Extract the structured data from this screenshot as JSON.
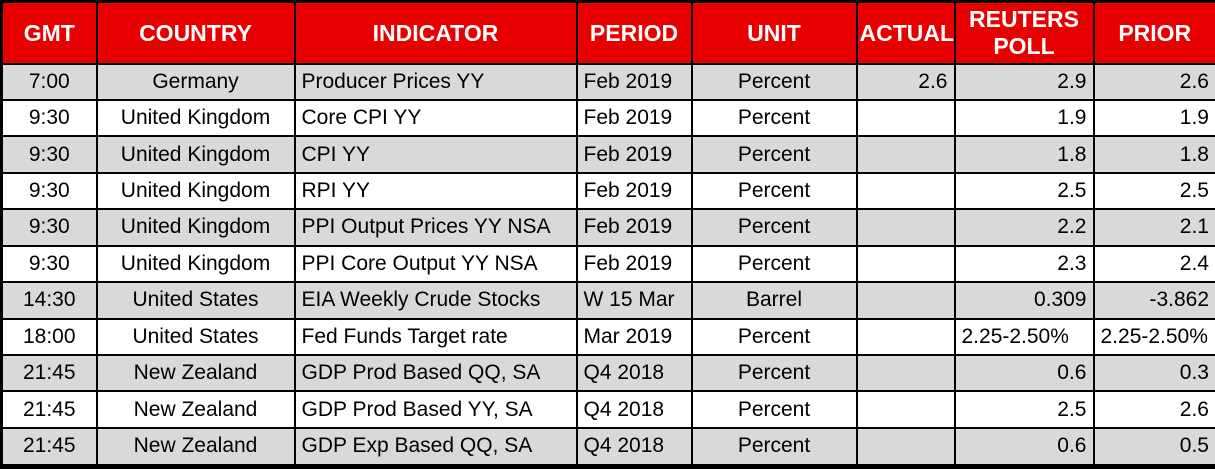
{
  "colors": {
    "header_bg": "#E80000",
    "header_text": "#FFFFFF",
    "stripe_bg": "#D9D9D9",
    "row_bg": "#FFFFFF",
    "border": "#000000",
    "body_text": "#000000"
  },
  "table": {
    "columns": [
      {
        "key": "gmt",
        "label": "GMT"
      },
      {
        "key": "country",
        "label": "COUNTRY"
      },
      {
        "key": "indicator",
        "label": "INDICATOR"
      },
      {
        "key": "period",
        "label": "PERIOD"
      },
      {
        "key": "unit",
        "label": "UNIT"
      },
      {
        "key": "actual",
        "label": "ACTUAL"
      },
      {
        "key": "poll",
        "label": "REUTERS POLL"
      },
      {
        "key": "prior",
        "label": "PRIOR"
      }
    ],
    "rows": [
      {
        "gmt": "7:00",
        "country": "Germany",
        "indicator": "Producer Prices YY",
        "period": "Feb 2019",
        "unit": "Percent",
        "actual": "2.6",
        "poll": "2.9",
        "prior": "2.6"
      },
      {
        "gmt": "9:30",
        "country": "United Kingdom",
        "indicator": "Core CPI YY",
        "period": "Feb 2019",
        "unit": "Percent",
        "actual": "",
        "poll": "1.9",
        "prior": "1.9"
      },
      {
        "gmt": "9:30",
        "country": "United Kingdom",
        "indicator": "CPI YY",
        "period": "Feb 2019",
        "unit": "Percent",
        "actual": "",
        "poll": "1.8",
        "prior": "1.8"
      },
      {
        "gmt": "9:30",
        "country": "United Kingdom",
        "indicator": "RPI YY",
        "period": "Feb 2019",
        "unit": "Percent",
        "actual": "",
        "poll": "2.5",
        "prior": "2.5"
      },
      {
        "gmt": "9:30",
        "country": "United Kingdom",
        "indicator": "PPI Output Prices YY NSA",
        "period": "Feb 2019",
        "unit": "Percent",
        "actual": "",
        "poll": "2.2",
        "prior": "2.1"
      },
      {
        "gmt": "9:30",
        "country": "United Kingdom",
        "indicator": "PPI Core Output YY NSA",
        "period": "Feb 2019",
        "unit": "Percent",
        "actual": "",
        "poll": "2.3",
        "prior": "2.4"
      },
      {
        "gmt": "14:30",
        "country": "United States",
        "indicator": "EIA Weekly Crude Stocks",
        "period": "W 15 Mar",
        "unit": "Barrel",
        "actual": "",
        "poll": "0.309",
        "prior": "-3.862"
      },
      {
        "gmt": "18:00",
        "country": "United States",
        "indicator": "Fed Funds Target rate",
        "period": "Mar 2019",
        "unit": "Percent",
        "actual": "",
        "poll": "2.25-2.50%",
        "prior": "2.25-2.50%"
      },
      {
        "gmt": "21:45",
        "country": "New Zealand",
        "indicator": "GDP Prod Based QQ, SA",
        "period": "Q4 2018",
        "unit": "Percent",
        "actual": "",
        "poll": "0.6",
        "prior": "0.3"
      },
      {
        "gmt": "21:45",
        "country": "New Zealand",
        "indicator": "GDP Prod Based YY, SA",
        "period": "Q4 2018",
        "unit": "Percent",
        "actual": "",
        "poll": "2.5",
        "prior": "2.6"
      },
      {
        "gmt": "21:45",
        "country": "New Zealand",
        "indicator": "GDP Exp Based QQ, SA",
        "period": "Q4 2018",
        "unit": "Percent",
        "actual": "",
        "poll": "0.6",
        "prior": "0.5"
      }
    ]
  }
}
